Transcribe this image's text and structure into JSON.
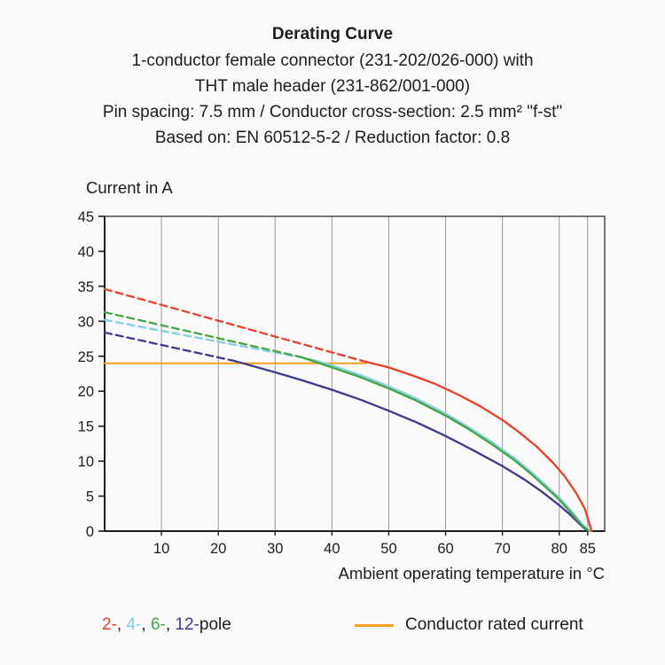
{
  "header": {
    "title": "Derating Curve",
    "subtitle_lines": [
      "1-conductor female connector (231-202/026-000) with",
      "THT male header (231-862/001-000)",
      "Pin spacing: 7.5 mm / Conductor cross-section: 2.5 mm² \"f-st\"",
      "Based on: EN 60512-5-2 / Reduction factor: 0.8"
    ]
  },
  "chart_data": {
    "type": "line",
    "title": "Derating Curve",
    "ylabel": "Current in A",
    "xlabel": "Ambient operating temperature in °C",
    "xlim": [
      0,
      88
    ],
    "ylim": [
      0,
      45
    ],
    "x_ticks": [
      10,
      20,
      30,
      40,
      50,
      60,
      70,
      80,
      85
    ],
    "y_ticks": [
      0,
      5,
      10,
      15,
      20,
      25,
      30,
      35,
      40,
      45
    ],
    "grid": "vertical-only",
    "legend_position": "bottom",
    "series": [
      {
        "name": "conductor-rated-current",
        "label": "Conductor rated current",
        "color": "#f7a021",
        "width": 2,
        "solid": [
          [
            0,
            24
          ],
          [
            46,
            24
          ]
        ]
      },
      {
        "name": "12-pole",
        "label": "12-pole",
        "color": "#3c3b8d",
        "dashed": [
          [
            0,
            28.4
          ],
          [
            23,
            24.3
          ]
        ],
        "solid": [
          [
            23,
            24.3
          ],
          [
            30,
            22.7
          ],
          [
            35,
            21.5
          ],
          [
            40,
            20.2
          ],
          [
            45,
            18.8
          ],
          [
            50,
            17.2
          ],
          [
            55,
            15.5
          ],
          [
            60,
            13.6
          ],
          [
            65,
            11.5
          ],
          [
            70,
            9.3
          ],
          [
            74,
            7.3
          ],
          [
            77,
            5.6
          ],
          [
            80,
            3.7
          ],
          [
            82,
            2.3
          ],
          [
            84,
            0.7
          ],
          [
            85,
            0
          ]
        ]
      },
      {
        "name": "4-pole",
        "label": "4-pole",
        "color": "#85cee4",
        "dashed": [
          [
            0,
            30.2
          ],
          [
            36,
            24.6
          ]
        ],
        "solid": [
          [
            36,
            24.6
          ],
          [
            40,
            23.7
          ],
          [
            45,
            22.3
          ],
          [
            50,
            20.7
          ],
          [
            55,
            18.9
          ],
          [
            60,
            16.8
          ],
          [
            64,
            14.9
          ],
          [
            68,
            12.8
          ],
          [
            72,
            10.5
          ],
          [
            75,
            8.5
          ],
          [
            78,
            6.3
          ],
          [
            80,
            4.8
          ],
          [
            82,
            3.0
          ],
          [
            84,
            1.0
          ],
          [
            85.4,
            0
          ]
        ]
      },
      {
        "name": "6-pole",
        "label": "6-pole",
        "color": "#47a447",
        "dashed": [
          [
            0,
            31.3
          ],
          [
            34.5,
            24.9
          ]
        ],
        "solid": [
          [
            34.5,
            24.9
          ],
          [
            40,
            23.4
          ],
          [
            45,
            22.0
          ],
          [
            50,
            20.4
          ],
          [
            55,
            18.6
          ],
          [
            60,
            16.5
          ],
          [
            64,
            14.6
          ],
          [
            68,
            12.5
          ],
          [
            72,
            10.2
          ],
          [
            75,
            8.2
          ],
          [
            78,
            6.0
          ],
          [
            80,
            4.5
          ],
          [
            82,
            2.7
          ],
          [
            84,
            0.8
          ],
          [
            85.2,
            0
          ]
        ]
      },
      {
        "name": "2-pole",
        "label": "2-pole",
        "color": "#e8402c",
        "dashed": [
          [
            0,
            34.6
          ],
          [
            46,
            24.2
          ]
        ],
        "solid": [
          [
            46,
            24.2
          ],
          [
            50,
            23.4
          ],
          [
            54,
            22.3
          ],
          [
            58,
            21.1
          ],
          [
            62,
            19.6
          ],
          [
            66,
            17.9
          ],
          [
            70,
            15.9
          ],
          [
            73,
            14.1
          ],
          [
            76,
            12.1
          ],
          [
            79,
            9.7
          ],
          [
            81,
            7.8
          ],
          [
            83,
            5.4
          ],
          [
            84.5,
            3.2
          ],
          [
            85.7,
            0
          ]
        ]
      }
    ]
  },
  "legend": {
    "poles": [
      {
        "label": "2-",
        "color": "#e8402c"
      },
      {
        "label": "4-",
        "color": "#85cee4"
      },
      {
        "label": "6-",
        "color": "#47a447"
      },
      {
        "label": "12-",
        "color": "#3c3b8d"
      }
    ],
    "poles_separator": ", ",
    "poles_suffix": "pole",
    "rated": {
      "label": "Conductor rated current",
      "color": "#f7a021"
    }
  }
}
